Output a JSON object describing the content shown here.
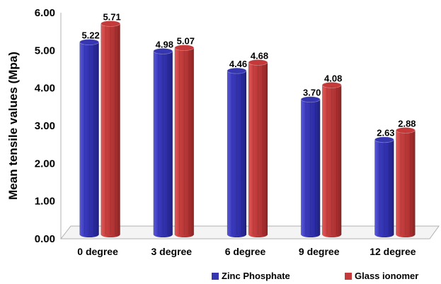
{
  "chart_data": {
    "type": "bar",
    "title": "",
    "xlabel": "",
    "ylabel": "Mean tensile values (Mpa)",
    "ylim": [
      0,
      6
    ],
    "yticks": [
      "0.00",
      "1.00",
      "2.00",
      "3.00",
      "4.00",
      "5.00",
      "6.00"
    ],
    "categories": [
      "0 degree",
      "3 degree",
      "6 degree",
      "9 degree",
      "12 degree"
    ],
    "series": [
      {
        "name": "Zinc Phosphate",
        "values": [
          5.22,
          4.98,
          4.46,
          3.7,
          2.63
        ],
        "labels": [
          "5.22",
          "4.98",
          "4.46",
          "3.70",
          "2.63"
        ],
        "color": "#3636b0"
      },
      {
        "name": "Glass ionomer",
        "values": [
          5.71,
          5.07,
          4.68,
          4.08,
          2.88
        ],
        "labels": [
          "5.71",
          "5.07",
          "4.68",
          "4.08",
          "2.88"
        ],
        "color": "#c43a3a"
      }
    ],
    "grid": false,
    "legend": "bottom-right",
    "style": "3d-cylinder"
  }
}
